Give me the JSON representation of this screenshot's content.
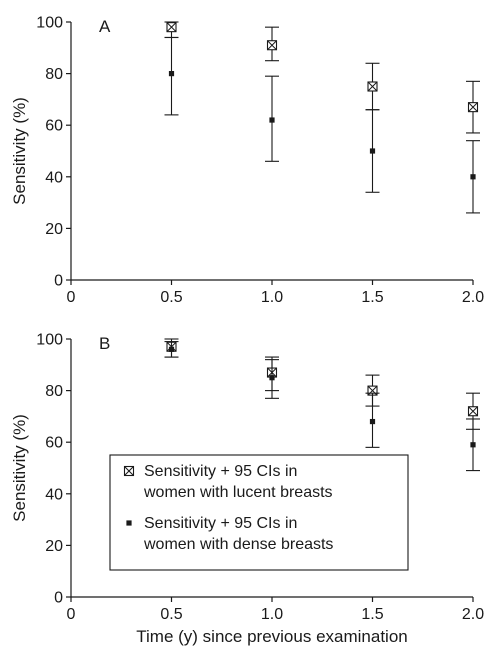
{
  "chart_data": [
    {
      "type": "scatter",
      "panel_label": "A",
      "ylabel": "Sensitivity (%)",
      "xlabel": "",
      "xlim": [
        0,
        2.0
      ],
      "ylim": [
        0,
        100
      ],
      "x_ticks": [
        0,
        0.5,
        1.0,
        1.5,
        2.0
      ],
      "x_tick_labels": [
        "0",
        "0.5",
        "1.0",
        "1.5",
        "2.0"
      ],
      "y_ticks": [
        0,
        20,
        40,
        60,
        80,
        100
      ],
      "y_tick_labels": [
        "0",
        "20",
        "40",
        "60",
        "80",
        "100"
      ],
      "series": [
        {
          "marker": "boxed-x",
          "x": [
            0.5,
            1.0,
            1.5,
            2.0
          ],
          "y": [
            98,
            91,
            75,
            67
          ],
          "ci_low": [
            94,
            85,
            66,
            57
          ],
          "ci_high": [
            100,
            98,
            84,
            77
          ]
        },
        {
          "marker": "filled-square",
          "x": [
            0.5,
            1.0,
            1.5,
            2.0
          ],
          "y": [
            80,
            62,
            50,
            40
          ],
          "ci_low": [
            64,
            46,
            34,
            26
          ],
          "ci_high": [
            94,
            79,
            66,
            54
          ]
        }
      ]
    },
    {
      "type": "scatter",
      "panel_label": "B",
      "ylabel": "Sensitivity (%)",
      "xlabel": "Time (y) since previous examination",
      "xlim": [
        0,
        2.0
      ],
      "ylim": [
        0,
        100
      ],
      "x_ticks": [
        0,
        0.5,
        1.0,
        1.5,
        2.0
      ],
      "x_tick_labels": [
        "0",
        "0.5",
        "1.0",
        "1.5",
        "2.0"
      ],
      "y_ticks": [
        0,
        20,
        40,
        60,
        80,
        100
      ],
      "y_tick_labels": [
        "0",
        "20",
        "40",
        "60",
        "80",
        "100"
      ],
      "legend": {
        "placement": "center-left",
        "entries": [
          {
            "marker": "boxed-x",
            "lines": [
              "Sensitivity + 95 CIs in",
              "women with lucent breasts"
            ]
          },
          {
            "marker": "filled-square",
            "lines": [
              "Sensitivity + 95 CIs in",
              "women with dense breasts"
            ]
          }
        ]
      },
      "series": [
        {
          "marker": "boxed-x",
          "x": [
            0.5,
            1.0,
            1.5,
            2.0
          ],
          "y": [
            97,
            87,
            80,
            72
          ],
          "ci_low": [
            93,
            80,
            74,
            65
          ],
          "ci_high": [
            100,
            93,
            86,
            79
          ]
        },
        {
          "marker": "filled-square",
          "x": [
            0.5,
            1.0,
            1.5,
            2.0
          ],
          "y": [
            96,
            85,
            68,
            59
          ],
          "ci_low": [
            93,
            77,
            58,
            49
          ],
          "ci_high": [
            99,
            92,
            79,
            69
          ]
        }
      ]
    }
  ]
}
